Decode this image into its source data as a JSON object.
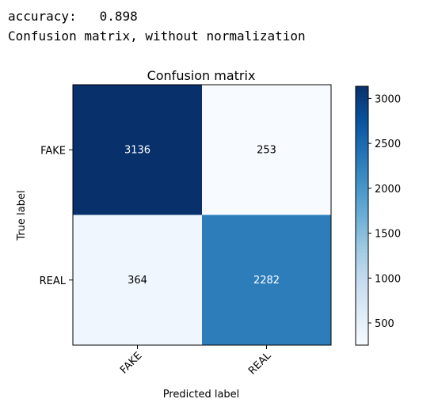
{
  "console": {
    "accuracy_line": "accuracy:   0.898",
    "matrix_line": "Confusion matrix, without normalization"
  },
  "chart_data": {
    "type": "heatmap",
    "title": "Confusion matrix",
    "xlabel": "Predicted label",
    "ylabel": "True label",
    "x_categories": [
      "FAKE",
      "REAL"
    ],
    "y_categories": [
      "FAKE",
      "REAL"
    ],
    "values": [
      [
        3136,
        253
      ],
      [
        364,
        2282
      ]
    ],
    "colormap": "Blues",
    "colorbar": {
      "ticks": [
        500,
        1000,
        1500,
        2000,
        2500,
        3000
      ],
      "range": [
        253,
        3136
      ]
    },
    "grid": false
  }
}
